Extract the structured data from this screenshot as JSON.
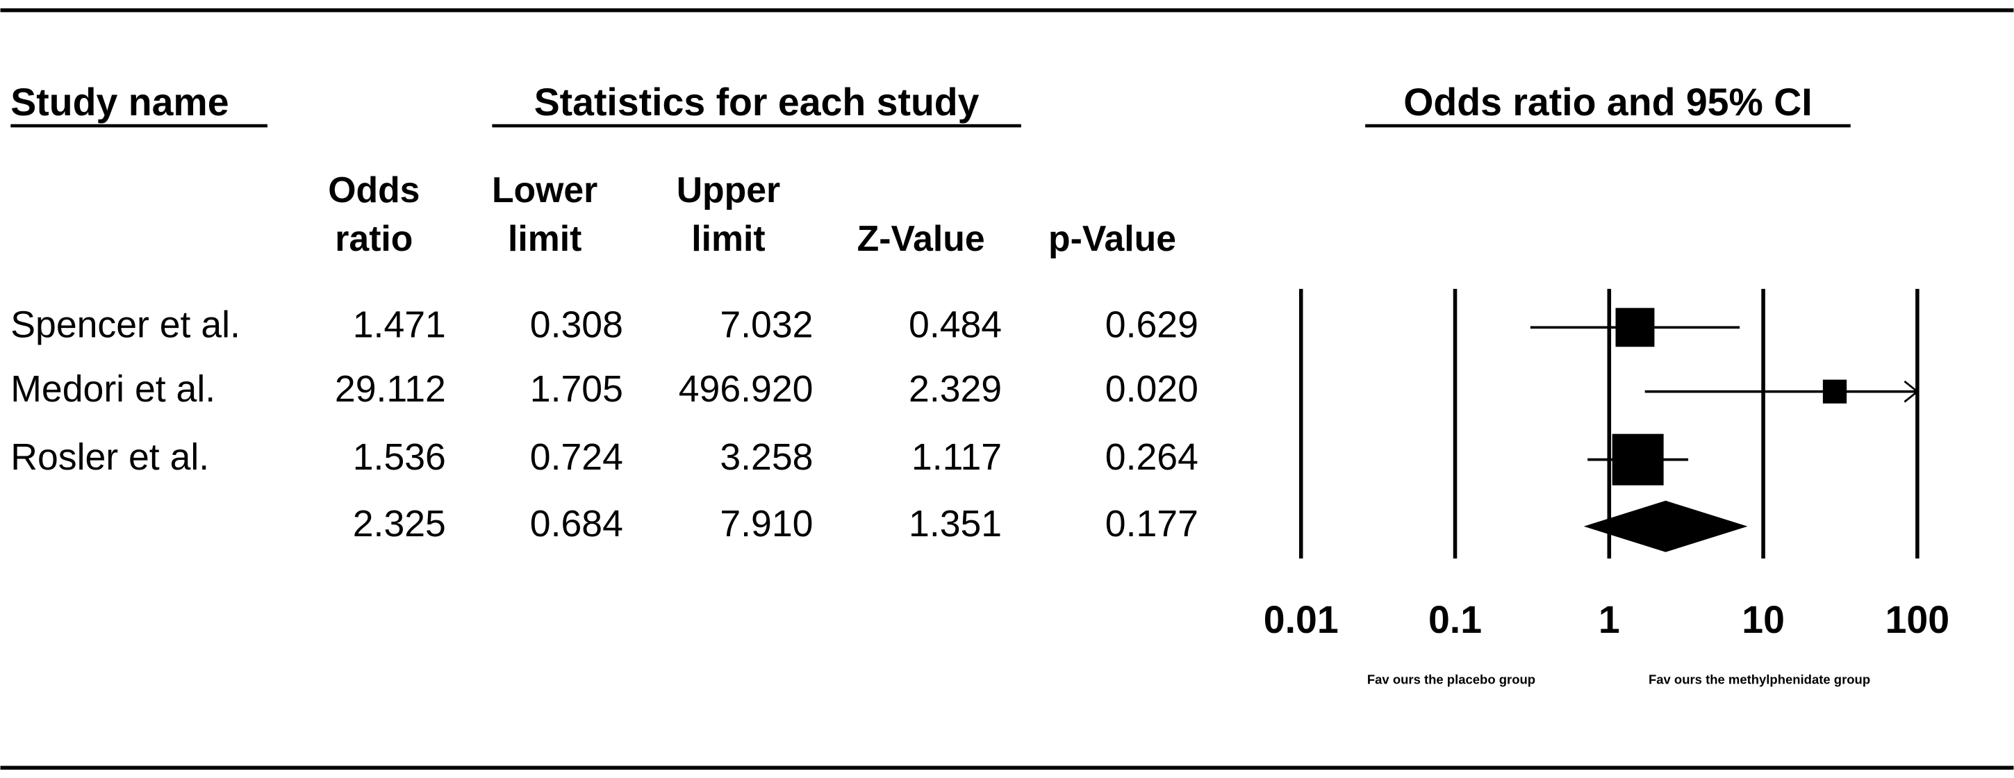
{
  "header": {
    "study": "Study name",
    "stats": "Statistics for each study"
  },
  "table": {
    "columns": [
      [
        "Odds",
        "ratio"
      ],
      [
        "Lower",
        "limit"
      ],
      [
        "Upper",
        "limit"
      ],
      [
        "Z-Value"
      ],
      [
        "p-Value"
      ]
    ],
    "rows": [
      [
        "1.471",
        "0.308",
        "7.032",
        "0.484",
        "0.629"
      ],
      [
        "29.112",
        "1.705",
        "496.920",
        "2.329",
        "0.020"
      ],
      [
        "1.536",
        "0.724",
        "3.258",
        "1.117",
        "0.264"
      ],
      [
        "2.325",
        "0.684",
        "7.910",
        "1.351",
        "0.177"
      ]
    ]
  },
  "chart_data": {
    "type": "forest",
    "title": "Odds ratio and 95% CI",
    "categories": [
      "Spencer et al.",
      "Medori et al.",
      "Rosler et al.",
      null
    ],
    "values": [
      1.471,
      29.112,
      1.536,
      2.325
    ],
    "lower": [
      0.308,
      1.705,
      0.724,
      0.684
    ],
    "upper": [
      7.032,
      496.92,
      3.258,
      7.91
    ],
    "weights": [
      32,
      12,
      56
    ],
    "xlim": [
      0.01,
      100
    ],
    "xticks": [
      0.01,
      0.1,
      1,
      10,
      100
    ],
    "log_scale": true,
    "color": "#000000",
    "footnotes": [
      "Fav ours the placebo group",
      "Fav ours the methylphenidate group"
    ]
  }
}
